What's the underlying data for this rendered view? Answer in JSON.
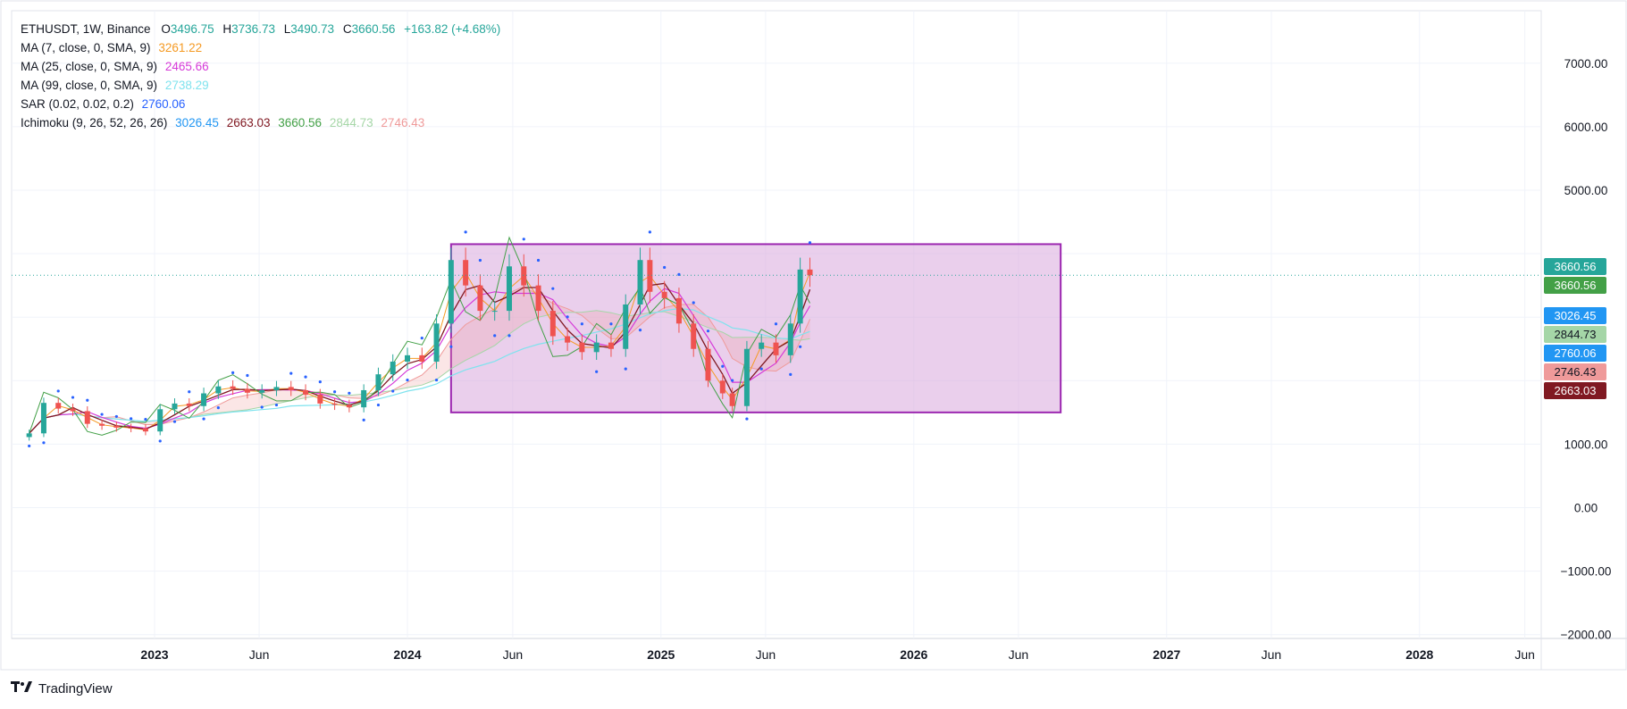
{
  "header": {
    "symbol_line": "ETHUSDT, 1W, Binance",
    "o_label": "O",
    "o": "3496.75",
    "h_label": "H",
    "h": "3736.73",
    "l_label": "L",
    "l": "3490.73",
    "c_label": "C",
    "c": "3660.56",
    "change": "+163.82 (+4.68%)"
  },
  "indicators": [
    {
      "label": "MA (7, close, 0, SMA, 9)",
      "values": [
        "3261.22"
      ],
      "colors": [
        "#f59a23"
      ]
    },
    {
      "label": "MA (25, close, 0, SMA, 9)",
      "values": [
        "2465.66"
      ],
      "colors": [
        "#d63ad8"
      ]
    },
    {
      "label": "MA (99, close, 0, SMA, 9)",
      "values": [
        "2738.29"
      ],
      "colors": [
        "#7fe3ee"
      ]
    },
    {
      "label": "SAR (0.02, 0.02, 0.2)",
      "values": [
        "2760.06"
      ],
      "colors": [
        "#2962ff"
      ]
    },
    {
      "label": "Ichimoku (9, 26, 52, 26, 26)",
      "values": [
        "3026.45",
        "2663.03",
        "3660.56",
        "2844.73",
        "2746.43"
      ],
      "colors": [
        "#2196f3",
        "#801922",
        "#43a047",
        "#a5d6a7",
        "#ef9a9a"
      ]
    }
  ],
  "price_tags": [
    {
      "text": "3660.56",
      "value": 3660.56,
      "color": "#26a69a",
      "offset": -1
    },
    {
      "text": "3660.56",
      "value": 3660.56,
      "color": "#43a047",
      "offset": 1
    },
    {
      "text": "3026.45",
      "value": 3026.45,
      "color": "#2196f3",
      "offset": 0
    },
    {
      "text": "2844.73",
      "value": 2844.73,
      "color": "#a5d6a7",
      "offset": 0
    },
    {
      "text": "2760.06",
      "value": 2760.06,
      "color": "#2196f3",
      "offset": 0
    },
    {
      "text": "2746.43",
      "value": 2746.43,
      "color": "#ef9a9a",
      "offset": 0
    },
    {
      "text": "2663.03",
      "value": 2663.03,
      "color": "#801922",
      "offset": 0
    }
  ],
  "brand": "TradingView",
  "colors": {
    "up": "#26a69a",
    "down": "#ef5350",
    "rect_fill": "#d9a8dc",
    "rect_stroke": "#9c27b0"
  },
  "chart_data": {
    "type": "candlestick",
    "symbol": "ETHUSDT",
    "interval": "1W",
    "exchange": "Binance",
    "y_axis": {
      "ticks": [
        -2000,
        -1000,
        0,
        1000,
        2000,
        3000,
        4000,
        5000,
        6000,
        7000
      ],
      "tick_labels": [
        "−2000.00",
        "−1000.00",
        "0.00",
        "1000.00",
        "",
        "",
        "",
        "5000.00",
        "6000.00",
        "7000.00"
      ]
    },
    "x_axis": {
      "labels": [
        {
          "text": "2023",
          "date": "2023-01-01",
          "bold": true
        },
        {
          "text": "Jun",
          "date": "2023-06-01",
          "bold": false
        },
        {
          "text": "2024",
          "date": "2024-01-01",
          "bold": true
        },
        {
          "text": "Jun",
          "date": "2024-06-01",
          "bold": false
        },
        {
          "text": "2025",
          "date": "2025-01-01",
          "bold": true
        },
        {
          "text": "Jun",
          "date": "2025-06-01",
          "bold": false
        },
        {
          "text": "2026",
          "date": "2026-01-01",
          "bold": true
        },
        {
          "text": "Jun",
          "date": "2026-06-01",
          "bold": false
        },
        {
          "text": "2027",
          "date": "2027-01-01",
          "bold": true
        },
        {
          "text": "Jun",
          "date": "2027-06-01",
          "bold": false
        },
        {
          "text": "2028",
          "date": "2028-01-01",
          "bold": true
        },
        {
          "text": "Jun",
          "date": "2028-06-01",
          "bold": false
        }
      ]
    },
    "close_series": [
      [
        "2022-07-04",
        1170
      ],
      [
        "2022-07-25",
        1650
      ],
      [
        "2022-08-15",
        1560
      ],
      [
        "2022-09-05",
        1520
      ],
      [
        "2022-09-26",
        1320
      ],
      [
        "2022-10-17",
        1290
      ],
      [
        "2022-11-07",
        1260
      ],
      [
        "2022-11-28",
        1250
      ],
      [
        "2022-12-19",
        1200
      ],
      [
        "2023-01-09",
        1550
      ],
      [
        "2023-01-30",
        1640
      ],
      [
        "2023-02-20",
        1600
      ],
      [
        "2023-03-13",
        1800
      ],
      [
        "2023-04-03",
        1910
      ],
      [
        "2023-04-24",
        1870
      ],
      [
        "2023-05-15",
        1810
      ],
      [
        "2023-06-05",
        1850
      ],
      [
        "2023-06-26",
        1900
      ],
      [
        "2023-07-17",
        1850
      ],
      [
        "2023-08-07",
        1780
      ],
      [
        "2023-08-28",
        1640
      ],
      [
        "2023-09-18",
        1620
      ],
      [
        "2023-10-09",
        1580
      ],
      [
        "2023-10-30",
        1850
      ],
      [
        "2023-11-20",
        2100
      ],
      [
        "2023-12-11",
        2300
      ],
      [
        "2024-01-01",
        2400
      ],
      [
        "2024-01-22",
        2300
      ],
      [
        "2024-02-12",
        2900
      ],
      [
        "2024-03-04",
        3900
      ],
      [
        "2024-03-25",
        3500
      ],
      [
        "2024-04-15",
        3100
      ],
      [
        "2024-05-06",
        3100
      ],
      [
        "2024-05-27",
        3800
      ],
      [
        "2024-06-17",
        3500
      ],
      [
        "2024-07-08",
        3100
      ],
      [
        "2024-07-29",
        2700
      ],
      [
        "2024-08-19",
        2600
      ],
      [
        "2024-09-09",
        2450
      ],
      [
        "2024-09-30",
        2600
      ],
      [
        "2024-10-21",
        2500
      ],
      [
        "2024-11-11",
        3200
      ],
      [
        "2024-12-02",
        3900
      ],
      [
        "2024-12-16",
        3400
      ],
      [
        "2025-01-06",
        3300
      ],
      [
        "2025-01-27",
        2900
      ],
      [
        "2025-02-17",
        2500
      ],
      [
        "2025-03-10",
        2000
      ],
      [
        "2025-03-31",
        1800
      ],
      [
        "2025-04-14",
        1600
      ],
      [
        "2025-05-05",
        2500
      ],
      [
        "2025-05-26",
        2600
      ],
      [
        "2025-06-16",
        2400
      ],
      [
        "2025-07-07",
        2900
      ],
      [
        "2025-07-21",
        3750
      ],
      [
        "2025-08-04",
        3660.56
      ]
    ],
    "rectangle": {
      "x0": "2024-03-04",
      "x1": "2026-08-01",
      "y0": 1500,
      "y1": 4150
    },
    "last_price": 3660.56
  }
}
